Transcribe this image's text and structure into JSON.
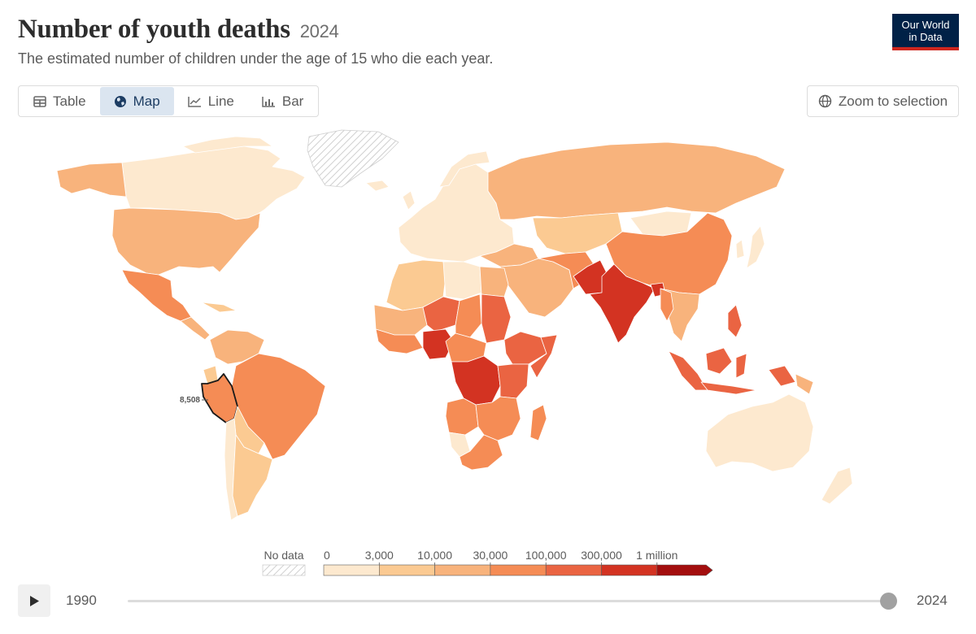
{
  "header": {
    "title": "Number of youth deaths",
    "title_year": "2024",
    "subtitle": "The estimated number of children under the age of 15 who die each year.",
    "logo_line1": "Our World",
    "logo_line2": "in Data"
  },
  "tabs": [
    {
      "label": "Table",
      "icon": "table-icon",
      "active": false
    },
    {
      "label": "Map",
      "icon": "globe-icon",
      "active": true
    },
    {
      "label": "Line",
      "icon": "line-chart-icon",
      "active": false
    },
    {
      "label": "Bar",
      "icon": "bar-chart-icon",
      "active": false
    }
  ],
  "zoom_button": {
    "label": "Zoom to selection",
    "icon": "globe-icon"
  },
  "map": {
    "type": "choropleth",
    "year": "2024",
    "highlighted_country": {
      "name": "Peru",
      "label": "8,508"
    },
    "bins": [
      0,
      3000,
      10000,
      30000,
      100000,
      300000,
      1000000
    ],
    "bin_labels": [
      "0",
      "3,000",
      "10,000",
      "30,000",
      "100,000",
      "300,000",
      "1 million"
    ],
    "colors": [
      "#fde9cf",
      "#fbca92",
      "#f8b37c",
      "#f58c55",
      "#ea6442",
      "#d33322",
      "#a30e0e"
    ],
    "no_data_label": "No data",
    "no_data_color": "#d9d9d9"
  },
  "timeline": {
    "start": "1990",
    "end": "2024",
    "value": "2024",
    "play_icon": "play-icon"
  }
}
